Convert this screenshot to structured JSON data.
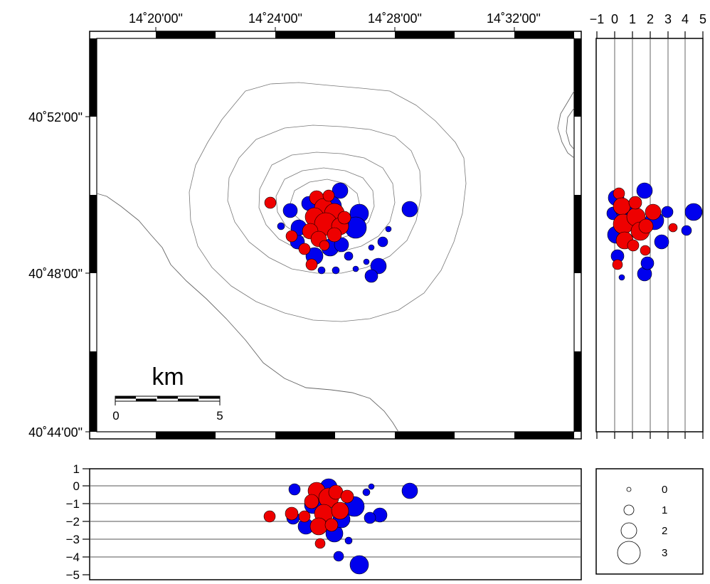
{
  "map": {
    "lon_labels": [
      "14˚20'00\"",
      "14˚24'00\"",
      "14˚28'00\"",
      "14˚32'00\""
    ],
    "lat_labels": [
      "40˚52'00\"",
      "40˚48'00\"",
      "40˚44'00\""
    ],
    "scale_bar": {
      "title": "km",
      "labels": [
        "0",
        "5"
      ]
    }
  },
  "side_section": {
    "tick_labels": [
      "−1",
      "0",
      "1",
      "2",
      "3",
      "4",
      "5"
    ]
  },
  "bottom_section": {
    "tick_labels": [
      "1",
      "0",
      "−1",
      "−2",
      "−3",
      "−4",
      "−5"
    ]
  },
  "legend": {
    "entries": [
      {
        "label": "0"
      },
      {
        "label": "1"
      },
      {
        "label": "2"
      },
      {
        "label": "3"
      }
    ]
  },
  "colors": {
    "blue_events": "#0000ee",
    "red_events": "#ee0000",
    "contour": "#777777"
  },
  "legend_meaning": "symbol size scale"
}
